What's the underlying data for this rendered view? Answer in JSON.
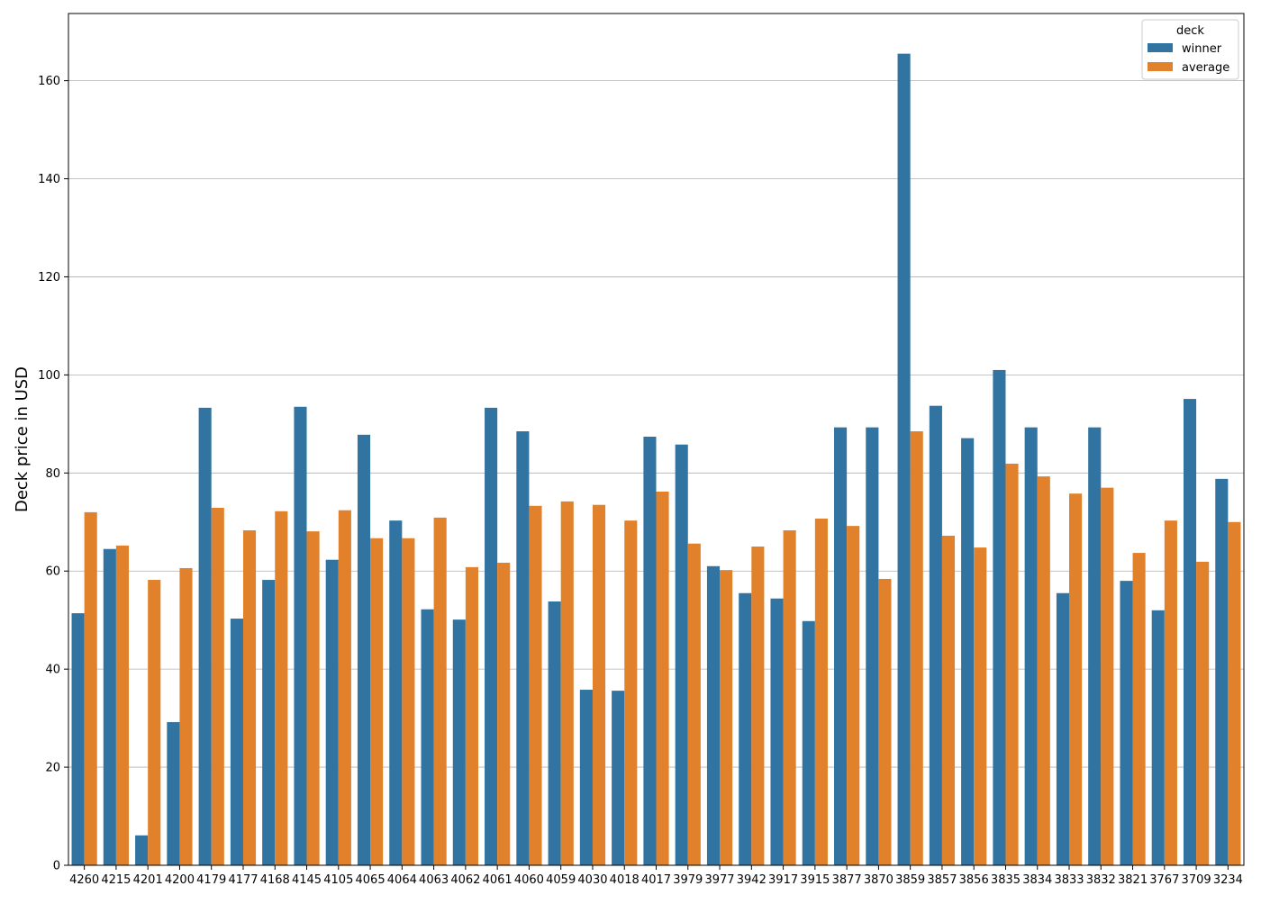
{
  "chart_data": {
    "type": "bar",
    "y_label": "Deck price in USD",
    "legend_title": "deck",
    "legend_position": "upper right",
    "grid": true,
    "categories": [
      "4260",
      "4215",
      "4201",
      "4200",
      "4179",
      "4177",
      "4168",
      "4145",
      "4105",
      "4065",
      "4064",
      "4063",
      "4062",
      "4061",
      "4060",
      "4059",
      "4030",
      "4018",
      "4017",
      "3979",
      "3977",
      "3942",
      "3917",
      "3915",
      "3877",
      "3870",
      "3859",
      "3857",
      "3856",
      "3835",
      "3834",
      "3833",
      "3832",
      "3821",
      "3767",
      "3709",
      "3234"
    ],
    "series": [
      {
        "name": "winner",
        "color": "#3274a1",
        "values": [
          51.4,
          64.5,
          6.1,
          29.2,
          93.3,
          50.3,
          58.2,
          93.5,
          62.3,
          87.8,
          70.3,
          52.2,
          50.1,
          93.3,
          88.5,
          53.8,
          35.8,
          35.6,
          87.4,
          85.8,
          61.0,
          55.5,
          54.4,
          49.8,
          89.3,
          89.3,
          165.5,
          93.7,
          87.1,
          101.0,
          89.3,
          55.5,
          89.3,
          58.0,
          52.0,
          95.1,
          78.8
        ]
      },
      {
        "name": "average",
        "color": "#e1812c",
        "values": [
          72.0,
          65.2,
          58.2,
          60.6,
          72.9,
          68.3,
          72.2,
          68.1,
          72.4,
          66.7,
          66.7,
          70.9,
          60.8,
          61.7,
          73.3,
          74.2,
          73.5,
          70.3,
          76.2,
          65.6,
          60.2,
          65.0,
          68.3,
          70.7,
          69.2,
          58.4,
          88.5,
          67.2,
          64.8,
          81.9,
          79.3,
          75.8,
          77.0,
          63.7,
          70.3,
          61.9,
          70.0
        ]
      }
    ],
    "ylim": [
      0,
      173.7
    ],
    "yticks": [
      0,
      20,
      40,
      60,
      80,
      100,
      120,
      140,
      160
    ]
  }
}
